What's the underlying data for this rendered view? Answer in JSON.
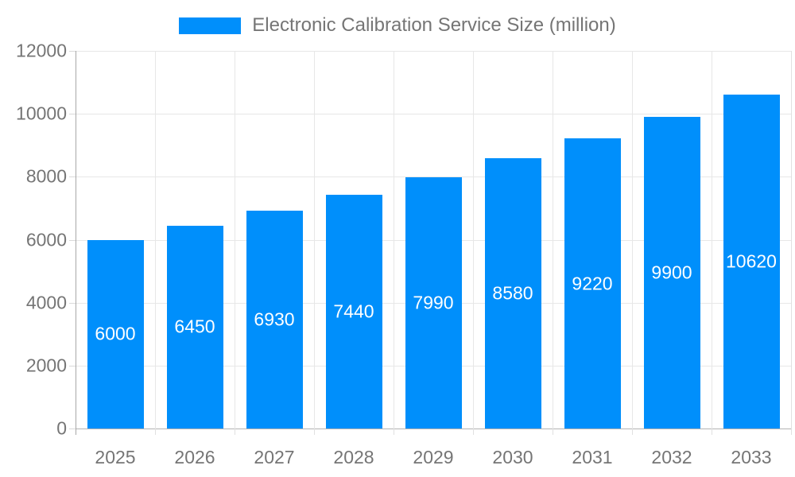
{
  "chart_data": {
    "type": "bar",
    "title": "Electronic Calibration Service Size (million)",
    "legend_label": "Electronic Calibration Service Size (million)",
    "legend_position": "top",
    "categories": [
      "2025",
      "2026",
      "2027",
      "2028",
      "2029",
      "2030",
      "2031",
      "2032",
      "2033"
    ],
    "values": [
      6000,
      6450,
      6930,
      7440,
      7990,
      8580,
      9220,
      9900,
      10620
    ],
    "xlabel": "",
    "ylabel": "",
    "ylim": [
      0,
      12000
    ],
    "yticks": [
      0,
      2000,
      4000,
      6000,
      8000,
      10000,
      12000
    ],
    "grid": true,
    "colors": {
      "bar": "#008FFB",
      "value_label": "#FFFFFF",
      "axis_text": "#757575",
      "gridline": "#E7E7E7",
      "zero_line": "#B3B3B3",
      "axis_line": "#A8A8A8",
      "plot_border": "#E0E0E0",
      "background": "#FFFFFF"
    }
  }
}
